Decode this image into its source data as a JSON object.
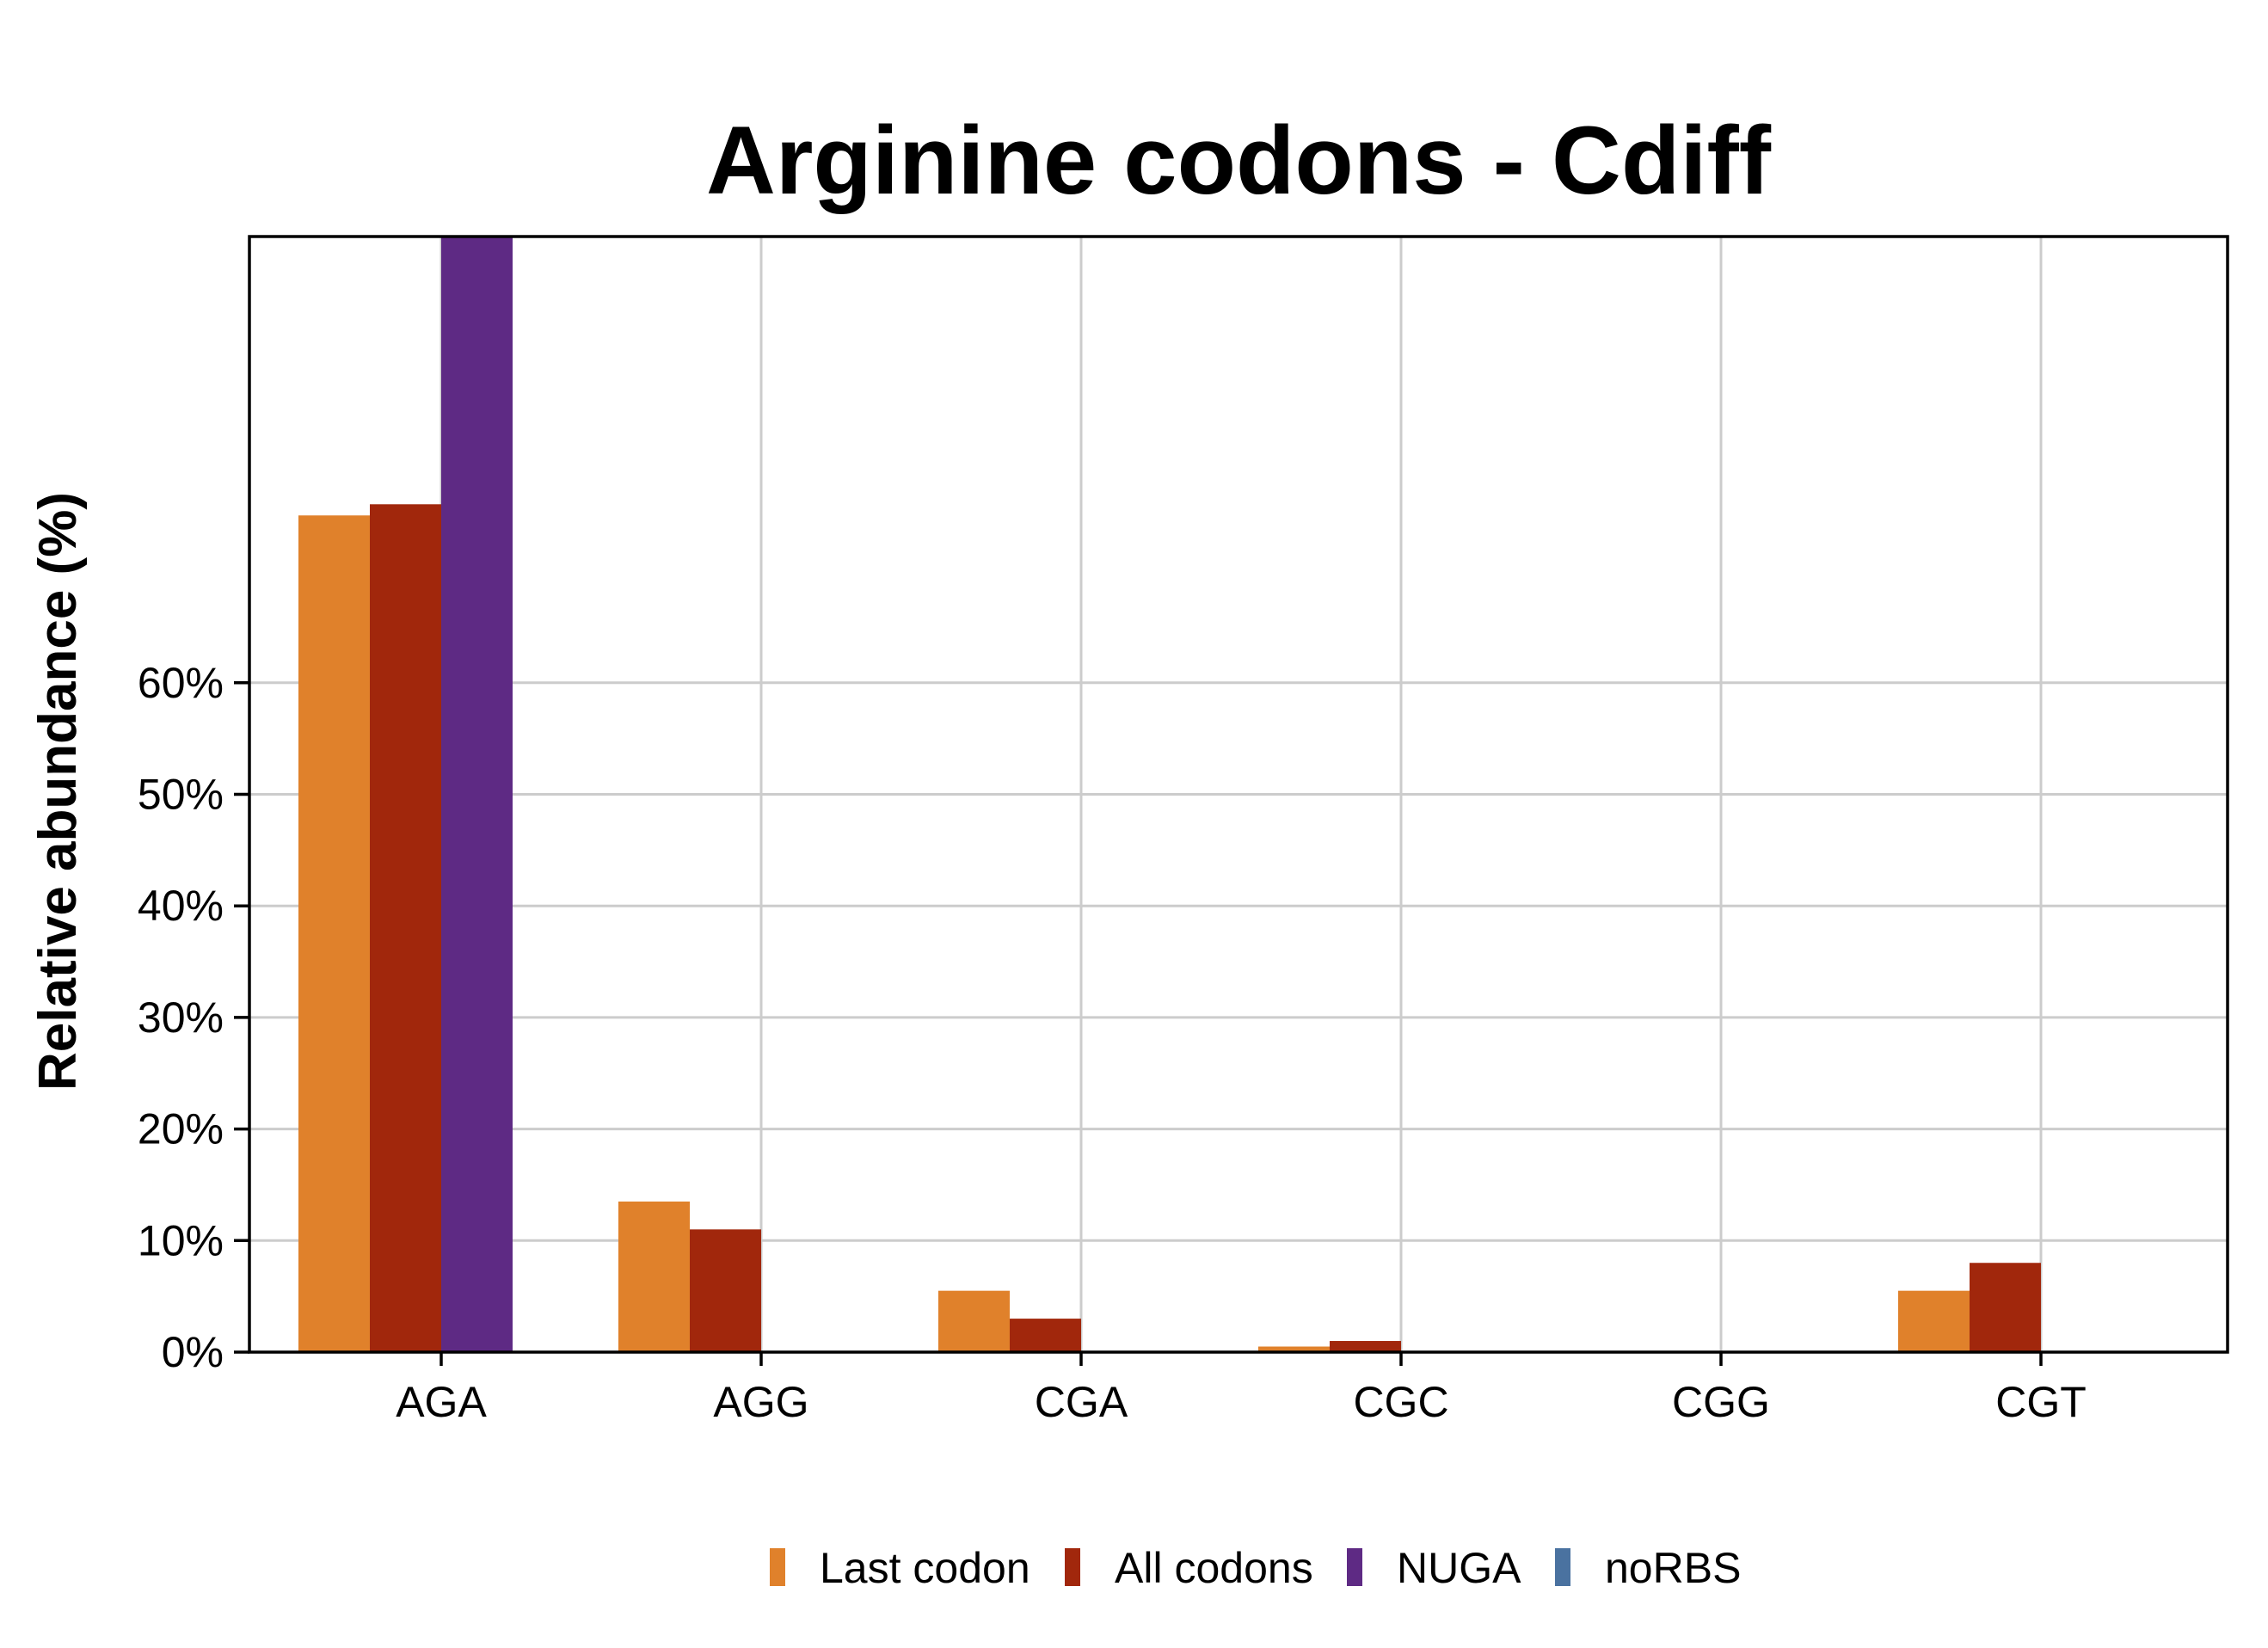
{
  "chart_data": {
    "type": "bar",
    "title": "Arginine codons - Cdiff",
    "xlabel": "",
    "ylabel": "Relative abundance (%)",
    "ylim": [
      0,
      100
    ],
    "yticks": [
      0,
      10,
      20,
      30,
      40,
      50,
      60
    ],
    "ytick_labels": [
      "0%",
      "10%",
      "20%",
      "30%",
      "40%",
      "50%",
      "60%"
    ],
    "categories": [
      "AGA",
      "AGG",
      "CGA",
      "CGC",
      "CGG",
      "CGT"
    ],
    "series": [
      {
        "name": "Last codon",
        "color": "#E0812B",
        "values": [
          75,
          13.5,
          5.5,
          0.5,
          0,
          5.5
        ]
      },
      {
        "name": "All codons",
        "color": "#A1270C",
        "values": [
          76,
          11,
          3,
          1,
          0,
          8
        ]
      },
      {
        "name": "NUGA",
        "color": "#5E2A84",
        "values": [
          100,
          0,
          0,
          0,
          0,
          0
        ]
      },
      {
        "name": "noRBS",
        "color": "#4A72A0",
        "values": [
          0,
          0,
          0,
          0,
          0,
          0
        ]
      }
    ],
    "grid": true,
    "legend_position": "bottom"
  }
}
